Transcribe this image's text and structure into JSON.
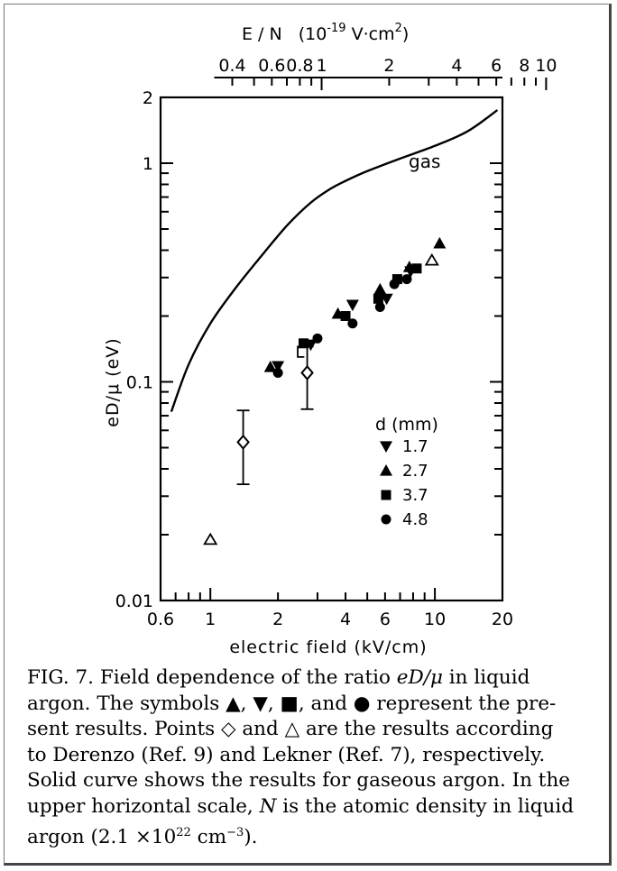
{
  "chart_data": {
    "type": "scatter",
    "title": "",
    "xlabel": "electric field (kV/cm)",
    "ylabel": "eD/μ (eV)",
    "x_scale": "log",
    "y_scale": "log",
    "xlim": [
      0.6,
      20
    ],
    "ylim": [
      0.01,
      2
    ],
    "x_tick_labels": [
      "0.6",
      "1",
      "2",
      "4",
      "6",
      "10",
      "20"
    ],
    "x_ticks": [
      0.6,
      1,
      2,
      4,
      6,
      10,
      20
    ],
    "y_tick_labels": [
      "0.01",
      "0.1",
      "1",
      "2"
    ],
    "y_ticks": [
      0.01,
      0.1,
      1,
      2
    ],
    "top_axis": {
      "label_main": "E / N",
      "label_unit_open": "(10",
      "label_unit_exp": "-19",
      "label_unit_rest": " V·cm",
      "label_unit_exp2": "2",
      "label_unit_close": ")",
      "tick_labels": [
        "0.4",
        "0.6",
        "0.8",
        "1",
        "2",
        "4",
        "6",
        "8",
        "10"
      ],
      "ticks": [
        0.4,
        0.6,
        0.8,
        1,
        2,
        4,
        6,
        8,
        10
      ]
    },
    "curve_label": "gas",
    "legend_title": "d (mm)",
    "legend_position": "lower-right",
    "series": [
      {
        "name": "1.7",
        "marker": "triangle-down",
        "points": [
          [
            2.0,
            0.118
          ],
          [
            2.8,
            0.148
          ],
          [
            4.3,
            0.225
          ],
          [
            6.1,
            0.24
          ],
          [
            7.8,
            0.32
          ]
        ]
      },
      {
        "name": "2.7",
        "marker": "triangle-up",
        "points": [
          [
            1.85,
            0.117
          ],
          [
            3.7,
            0.205
          ],
          [
            5.7,
            0.265
          ],
          [
            7.7,
            0.335
          ],
          [
            10.5,
            0.43
          ]
        ]
      },
      {
        "name": "3.7",
        "marker": "square",
        "points": [
          [
            2.6,
            0.15
          ],
          [
            4.0,
            0.2
          ],
          [
            5.6,
            0.24
          ],
          [
            6.8,
            0.295
          ],
          [
            8.3,
            0.33
          ]
        ]
      },
      {
        "name": "4.8",
        "marker": "circle",
        "points": [
          [
            2.0,
            0.11
          ],
          [
            3.0,
            0.158
          ],
          [
            4.3,
            0.185
          ],
          [
            5.7,
            0.22
          ],
          [
            6.6,
            0.28
          ],
          [
            7.5,
            0.295
          ]
        ]
      }
    ],
    "reference_points": [
      {
        "source": "Derenzo",
        "marker": "diamond-open",
        "points": [
          [
            1.4,
            0.053
          ],
          [
            2.7,
            0.11
          ]
        ],
        "error_low": [
          0.034,
          0.075
        ],
        "error_high": [
          0.074,
          0.145
        ]
      },
      {
        "source": "Lekner",
        "marker": "triangle-open",
        "points": [
          [
            1.0,
            0.019
          ],
          [
            9.7,
            0.36
          ]
        ]
      }
    ],
    "gas_curve": {
      "x": [
        0.67,
        0.8,
        1.0,
        1.3,
        1.7,
        2.2,
        2.8,
        3.4,
        4.0,
        5.0,
        7.0,
        10.0,
        14.0,
        19.0
      ],
      "y": [
        0.073,
        0.12,
        0.185,
        0.27,
        0.38,
        0.52,
        0.66,
        0.76,
        0.83,
        0.92,
        1.05,
        1.2,
        1.4,
        1.75
      ]
    }
  },
  "caption": {
    "line1_a": "FIG. 7.  Field dependence of the ratio ",
    "line1_math": "eD/μ",
    "line1_b": " in liquid",
    "line2_a": "argon.  The symbols ",
    "sym_up": "▲",
    "sym_down": "▼",
    "sym_square": "■",
    "sym_circle": "●",
    "line2_b": " represent the pre-",
    "line3_a": "sent results.  Points ",
    "sym_diamond": "◇",
    "line3_mid": " and ",
    "sym_tri_open": "△",
    "line3_b": " are the results according",
    "line4": "to Derenzo (Ref. 9) and Lekner (Ref. 7), respectively.",
    "line5": "Solid curve shows the results for gaseous argon.  In the",
    "line6_a": "upper horizontal scale, ",
    "line6_math": "N",
    "line6_b": " is the atomic density in liquid",
    "line7_a": "argon (2.1 ×10",
    "line7_exp": "22",
    "line7_b": " cm",
    "line7_exp2": "−3",
    "line7_c": ")."
  }
}
